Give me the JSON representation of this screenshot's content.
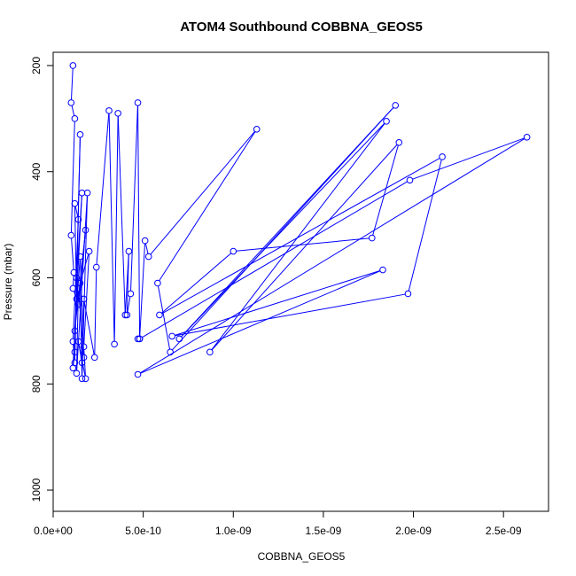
{
  "chart_data": {
    "type": "line",
    "title": "ATOM4 Southbound COBBNA_GEOS5",
    "xlabel": "COBBNA_GEOS5",
    "ylabel": "Pressure (mbar)",
    "xlim": [
      0,
      2.75e-09
    ],
    "ylim": [
      1040,
      175
    ],
    "y_reversed": true,
    "x_ticks": [
      0,
      5e-10,
      1e-09,
      1.5e-09,
      2e-09,
      2.5e-09
    ],
    "x_tick_labels": [
      "0.0e+00",
      "5.0e-10",
      "1.0e-09",
      "1.5e-09",
      "2.0e-09",
      "2.5e-09"
    ],
    "y_ticks": [
      200,
      400,
      600,
      800,
      1000
    ],
    "y_tick_labels": [
      "200",
      "400",
      "600",
      "800",
      "1000"
    ],
    "grid": false,
    "marker": "open-circle",
    "series": [
      {
        "color": "#0000ff",
        "x": [
          1.1e-10,
          1e-10,
          1.2e-10,
          1e-10,
          1.15e-10,
          1.1e-10,
          1.3e-10,
          1.2e-10,
          1.4e-10,
          1.1e-10,
          1.2e-10,
          1.5e-10,
          1.2e-10,
          1.1e-10,
          1.6e-10,
          1.3e-10,
          1.4e-10,
          1.8e-10,
          1.2e-10,
          1.5e-10,
          1.7e-10,
          1.4e-10,
          1.3e-10,
          1.9e-10,
          1.6e-10,
          1.5e-10,
          2e-10,
          1.7e-10,
          1.8e-10,
          1.4e-10,
          1.6e-10,
          1.7e-10,
          2.3e-10,
          2.4e-10,
          3.1e-10,
          3.4e-10,
          3.6e-10,
          4e-10,
          4.2e-10,
          4.1e-10,
          4.3e-10,
          4.7e-10,
          4.8e-10,
          5.1e-10,
          5.3e-10,
          1.13e-09,
          5.8e-10,
          6.5e-10,
          1.9e-09,
          7e-10,
          1.85e-09,
          8.7e-10,
          1.92e-09,
          1.77e-09,
          1e-09,
          5.9e-10,
          2.16e-09,
          1.97e-09,
          6.6e-10,
          1.83e-09,
          4.7e-10,
          2.63e-09,
          1.98e-09,
          4.8e-10,
          4.7e-10
        ],
        "y": [
          200,
          270,
          300,
          520,
          590,
          620,
          640,
          460,
          490,
          720,
          760,
          330,
          740,
          770,
          440,
          600,
          650,
          510,
          700,
          560,
          750,
          620,
          780,
          440,
          790,
          610,
          550,
          730,
          790,
          720,
          760,
          640,
          750,
          580,
          285,
          725,
          290,
          670,
          550,
          670,
          630,
          270,
          715,
          530,
          560,
          320,
          610,
          740,
          275,
          715,
          305,
          740,
          345,
          525,
          550,
          670,
          372,
          630,
          710,
          585,
          782,
          335,
          416,
          715,
          715
        ]
      }
    ]
  }
}
